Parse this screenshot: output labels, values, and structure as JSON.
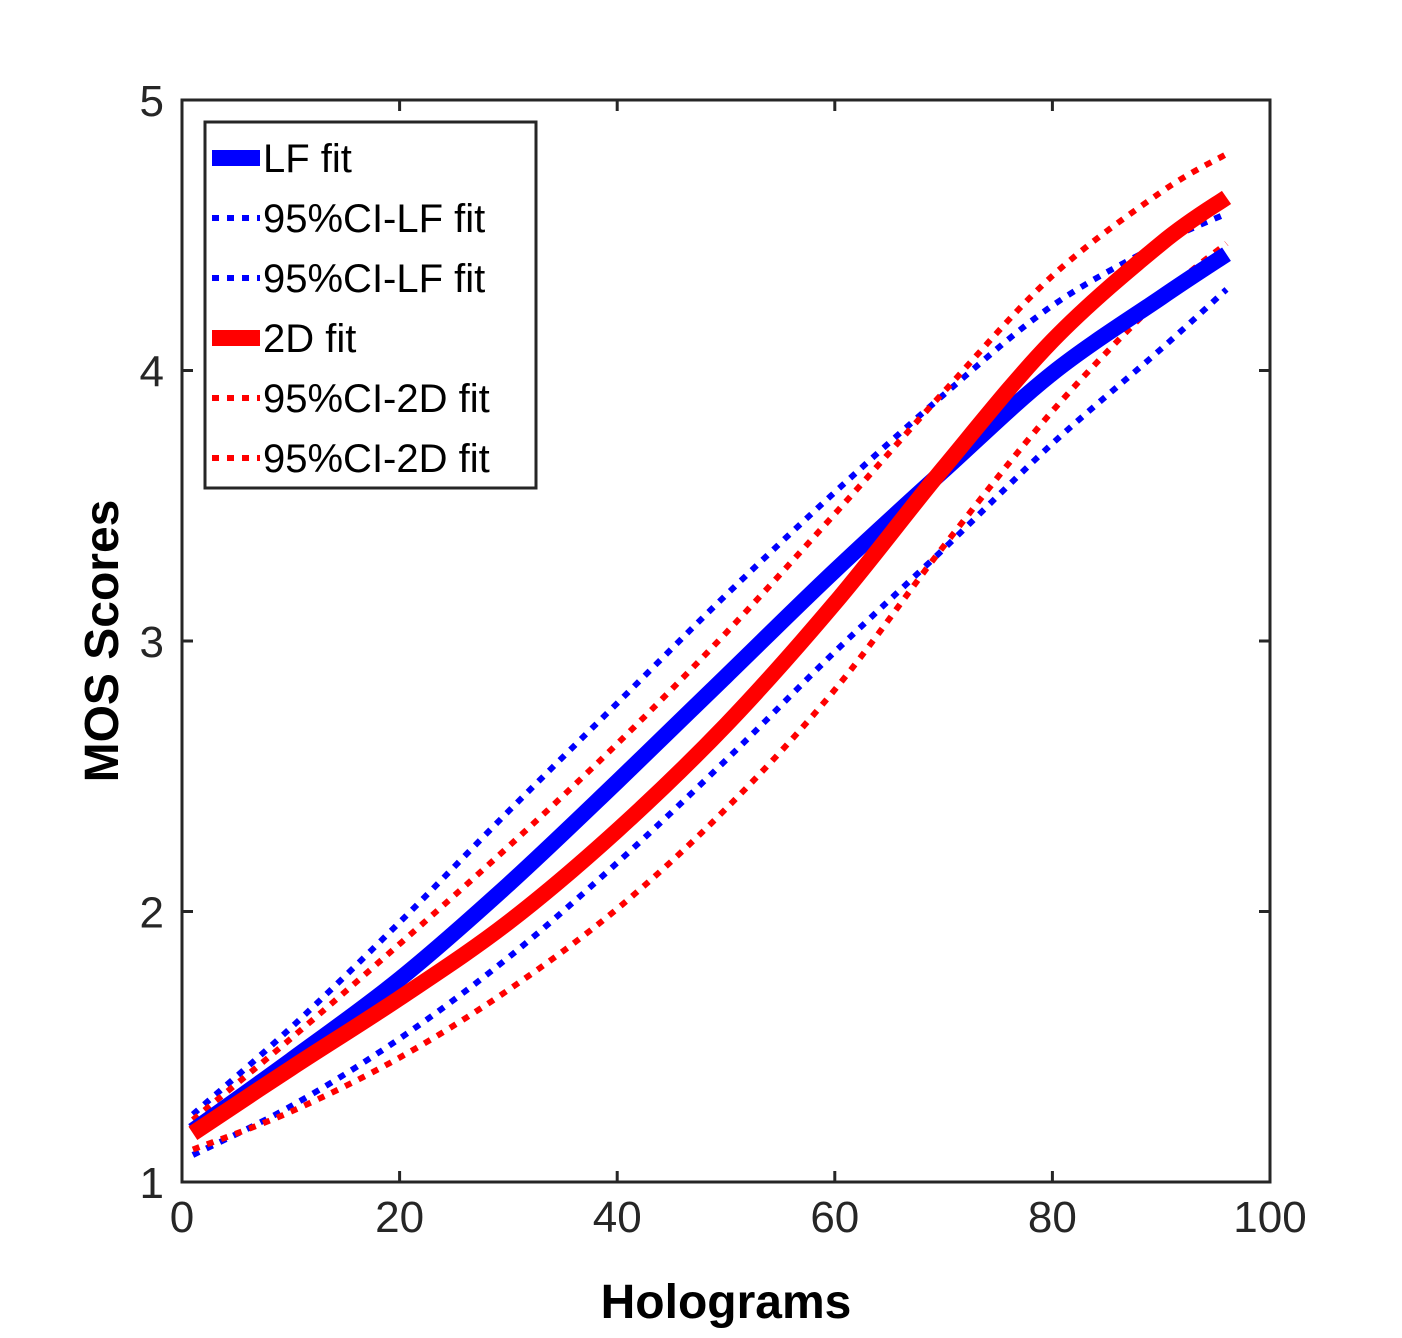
{
  "chart_data": {
    "type": "line",
    "title": "",
    "xlabel": "Holograms",
    "ylabel": "MOS Scores",
    "xlim": [
      0,
      100
    ],
    "ylim": [
      1,
      5
    ],
    "xticks": [
      0,
      20,
      40,
      60,
      80,
      100
    ],
    "yticks": [
      1,
      2,
      3,
      4,
      5
    ],
    "grid": false,
    "legend_position": "top-left",
    "series": [
      {
        "name": "LF fit",
        "style": "solid",
        "color": "#0000ff",
        "x": [
          1,
          10,
          20,
          30,
          40,
          50,
          60,
          70,
          80,
          90,
          96
        ],
        "y": [
          1.19,
          1.45,
          1.75,
          2.1,
          2.48,
          2.87,
          3.26,
          3.63,
          3.99,
          4.27,
          4.43
        ]
      },
      {
        "name": "95%CI-LF fit",
        "style": "dotted",
        "color": "#0000ff",
        "x": [
          1,
          10,
          20,
          30,
          40,
          50,
          60,
          70,
          80,
          90,
          96
        ],
        "y": [
          1.25,
          1.57,
          1.96,
          2.37,
          2.77,
          3.17,
          3.55,
          3.91,
          4.24,
          4.47,
          4.58
        ]
      },
      {
        "name": "95%CI-LF fit",
        "style": "dotted",
        "color": "#0000ff",
        "x": [
          1,
          10,
          20,
          30,
          40,
          50,
          60,
          70,
          80,
          90,
          96
        ],
        "y": [
          1.1,
          1.28,
          1.53,
          1.83,
          2.18,
          2.56,
          2.96,
          3.34,
          3.73,
          4.08,
          4.3
        ]
      },
      {
        "name": "2D fit",
        "style": "solid",
        "color": "#ff0000",
        "x": [
          1,
          10,
          20,
          30,
          40,
          50,
          60,
          70,
          80,
          90,
          96
        ],
        "y": [
          1.18,
          1.42,
          1.68,
          1.96,
          2.3,
          2.69,
          3.14,
          3.64,
          4.11,
          4.47,
          4.64
        ]
      },
      {
        "name": "95%CI-2D fit",
        "style": "dotted",
        "color": "#ff0000",
        "x": [
          1,
          10,
          20,
          30,
          40,
          50,
          60,
          70,
          80,
          90,
          96
        ],
        "y": [
          1.23,
          1.53,
          1.88,
          2.24,
          2.62,
          3.03,
          3.47,
          3.92,
          4.35,
          4.66,
          4.8
        ]
      },
      {
        "name": "95%CI-2D fit",
        "style": "dotted",
        "color": "#ff0000",
        "x": [
          1,
          10,
          20,
          30,
          40,
          50,
          60,
          70,
          80,
          90,
          96
        ],
        "y": [
          1.12,
          1.26,
          1.46,
          1.71,
          2.01,
          2.38,
          2.82,
          3.35,
          3.85,
          4.27,
          4.47
        ]
      }
    ]
  }
}
